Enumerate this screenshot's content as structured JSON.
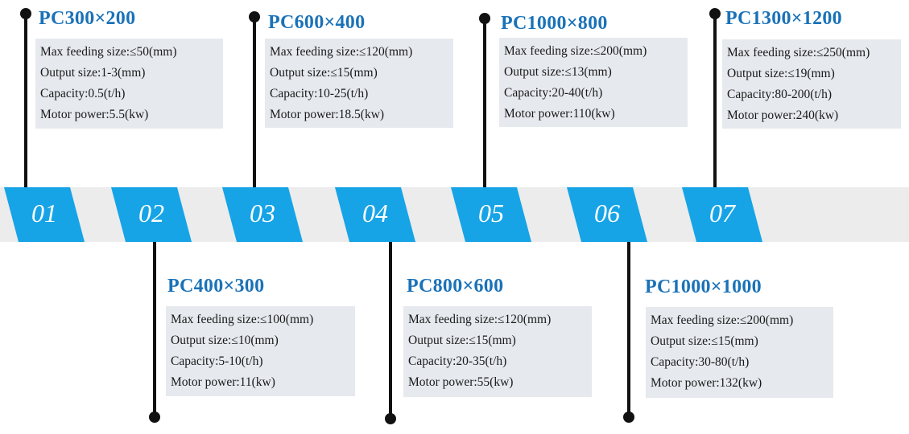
{
  "tabs": [
    "01",
    "02",
    "03",
    "04",
    "05",
    "06",
    "07"
  ],
  "models": [
    {
      "title": "PC300×200",
      "specs": [
        "Max feeding size:≤50(mm)",
        "Output size:1-3(mm)",
        "Capacity:0.5(t/h)",
        "Motor power:5.5(kw)"
      ]
    },
    {
      "title": "PC400×300",
      "specs": [
        "Max feeding size:≤100(mm)",
        "Output size:≤10(mm)",
        "Capacity:5-10(t/h)",
        "Motor power:11(kw)"
      ]
    },
    {
      "title": "PC600×400",
      "specs": [
        "Max feeding size:≤120(mm)",
        "Output size:≤15(mm)",
        "Capacity:10-25(t/h)",
        "Motor power:18.5(kw)"
      ]
    },
    {
      "title": "PC800×600",
      "specs": [
        "Max feeding size:≤120(mm)",
        "Output size:≤15(mm)",
        "Capacity:20-35(t/h)",
        "Motor power:55(kw)"
      ]
    },
    {
      "title": "PC1000×800",
      "specs": [
        "Max feeding size:≤200(mm)",
        "Output size:≤13(mm)",
        "Capacity:20-40(t/h)",
        "Motor power:110(kw)"
      ]
    },
    {
      "title": "PC1000×1000",
      "specs": [
        "Max feeding size:≤200(mm)",
        "Output size:≤15(mm)",
        "Capacity:30-80(t/h)",
        "Motor power:132(kw)"
      ]
    },
    {
      "title": "PC1300×1200",
      "specs": [
        "Max feeding size:≤250(mm)",
        "Output size:≤19(mm)",
        "Capacity:80-200(t/h)",
        "Motor power:240(kw)"
      ]
    }
  ],
  "colors": {
    "accent": "#16a4e6",
    "title": "#1a72b8",
    "card": "#e6e9ee",
    "band": "#ececec"
  }
}
